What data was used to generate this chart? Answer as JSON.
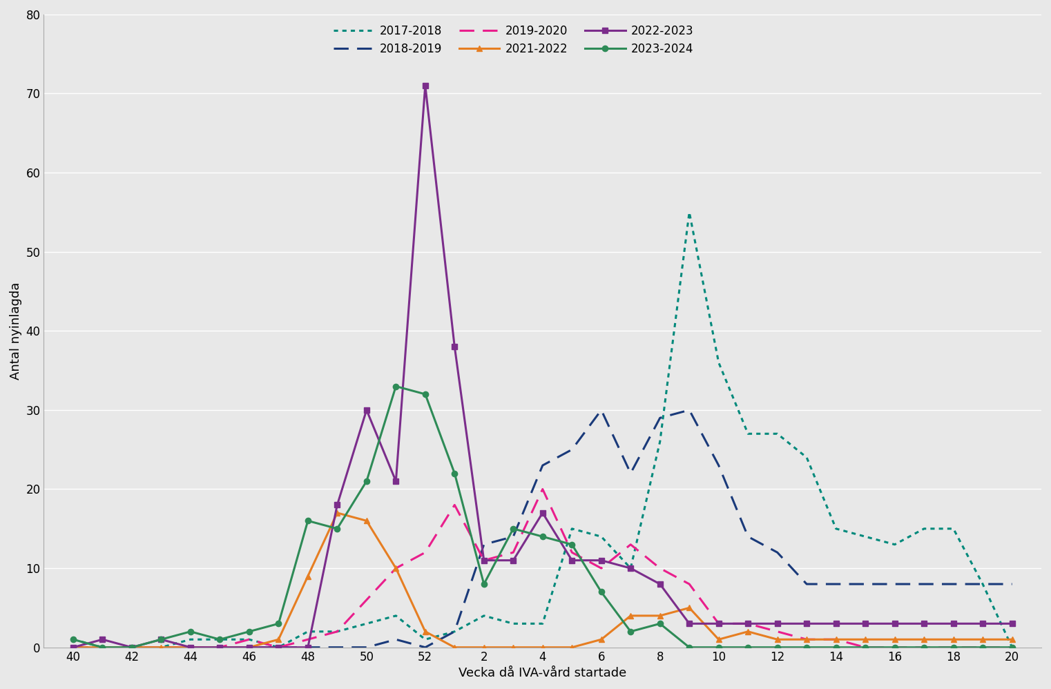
{
  "xlabel": "Vecka då IVA-vård startade",
  "ylabel": "Antal nyinlagda",
  "ylim": [
    0,
    80
  ],
  "yticks": [
    0,
    10,
    20,
    30,
    40,
    50,
    60,
    70,
    80
  ],
  "x_labels": [
    40,
    42,
    44,
    46,
    48,
    50,
    52,
    2,
    4,
    6,
    8,
    10,
    12,
    14,
    16,
    18,
    20
  ],
  "x_positions": [
    40,
    42,
    44,
    46,
    48,
    50,
    52,
    54,
    56,
    58,
    60,
    62,
    64,
    66,
    68,
    70,
    72
  ],
  "series": [
    {
      "label": "2017-2018",
      "color": "#00897b",
      "linestyle": "dotted",
      "linewidth": 2.2,
      "marker": null,
      "data_x": [
        40,
        41,
        42,
        43,
        44,
        45,
        46,
        47,
        48,
        49,
        50,
        51,
        52,
        53,
        54,
        55,
        56,
        57,
        58,
        59,
        60,
        61,
        62,
        63,
        64,
        65,
        66,
        67,
        68,
        69,
        70,
        71,
        72
      ],
      "data_y": [
        1,
        0,
        0,
        0,
        1,
        1,
        1,
        0,
        2,
        2,
        3,
        4,
        1,
        2,
        4,
        3,
        3,
        15,
        14,
        10,
        26,
        55,
        36,
        27,
        27,
        24,
        15,
        14,
        13,
        15,
        15,
        8,
        0
      ]
    },
    {
      "label": "2018-2019",
      "color": "#1a3a7a",
      "linestyle": "dashed",
      "linewidth": 2.2,
      "marker": null,
      "data_x": [
        40,
        41,
        42,
        43,
        44,
        45,
        46,
        47,
        48,
        49,
        50,
        51,
        52,
        53,
        54,
        55,
        56,
        57,
        58,
        59,
        60,
        61,
        62,
        63,
        64,
        65,
        66,
        67,
        68,
        69,
        70,
        71,
        72
      ],
      "data_y": [
        0,
        0,
        0,
        0,
        0,
        0,
        0,
        0,
        0,
        0,
        0,
        1,
        0,
        2,
        13,
        14,
        23,
        25,
        30,
        22,
        29,
        30,
        23,
        14,
        12,
        8,
        8,
        8,
        8,
        8,
        8,
        8,
        8
      ]
    },
    {
      "label": "2019-2020",
      "color": "#e91e8c",
      "linestyle": "dashed",
      "linewidth": 2.2,
      "marker": null,
      "data_x": [
        40,
        41,
        42,
        43,
        44,
        45,
        46,
        47,
        48,
        49,
        50,
        51,
        52,
        53,
        54,
        55,
        56,
        57,
        58,
        59,
        60,
        61,
        62,
        63,
        64,
        65,
        66,
        67,
        68,
        69,
        70,
        71,
        72
      ],
      "data_y": [
        0,
        0,
        0,
        0,
        0,
        0,
        1,
        0,
        1,
        2,
        6,
        10,
        12,
        18,
        11,
        12,
        20,
        12,
        10,
        13,
        10,
        8,
        3,
        3,
        2,
        1,
        1,
        0,
        0,
        0,
        0,
        0,
        0
      ]
    },
    {
      "label": "2021-2022",
      "color": "#e67e22",
      "linestyle": "solid",
      "linewidth": 2.2,
      "marker": "^",
      "markersize": 6,
      "data_x": [
        40,
        41,
        42,
        43,
        44,
        45,
        46,
        47,
        48,
        49,
        50,
        51,
        52,
        53,
        54,
        55,
        56,
        57,
        58,
        59,
        60,
        61,
        62,
        63,
        64,
        65,
        66,
        67,
        68,
        69,
        70,
        71,
        72
      ],
      "data_y": [
        0,
        0,
        0,
        0,
        0,
        0,
        0,
        1,
        9,
        17,
        16,
        10,
        2,
        0,
        0,
        0,
        0,
        0,
        1,
        4,
        4,
        5,
        1,
        2,
        1,
        1,
        1,
        1,
        1,
        1,
        1,
        1,
        1
      ]
    },
    {
      "label": "2022-2023",
      "color": "#7b2d8b",
      "linestyle": "solid",
      "linewidth": 2.2,
      "marker": "s",
      "markersize": 6,
      "data_x": [
        40,
        41,
        42,
        43,
        44,
        45,
        46,
        47,
        48,
        49,
        50,
        51,
        52,
        53,
        54,
        55,
        56,
        57,
        58,
        59,
        60,
        61,
        62,
        63,
        64,
        65,
        66,
        67,
        68,
        69,
        70,
        71,
        72
      ],
      "data_y": [
        0,
        1,
        0,
        1,
        0,
        0,
        0,
        0,
        0,
        18,
        30,
        21,
        71,
        38,
        11,
        11,
        17,
        11,
        11,
        10,
        8,
        3,
        3,
        3,
        3,
        3,
        3,
        3,
        3,
        3,
        3,
        3,
        3
      ]
    },
    {
      "label": "2023-2024",
      "color": "#2e8b57",
      "linestyle": "solid",
      "linewidth": 2.2,
      "marker": "o",
      "markersize": 6,
      "data_x": [
        40,
        41,
        42,
        43,
        44,
        45,
        46,
        47,
        48,
        49,
        50,
        51,
        52,
        53,
        54,
        55,
        56,
        57,
        58,
        59,
        60,
        61,
        62,
        63,
        64,
        65,
        66,
        67,
        68,
        69,
        70,
        71,
        72
      ],
      "data_y": [
        1,
        0,
        0,
        1,
        2,
        1,
        2,
        3,
        16,
        15,
        21,
        33,
        32,
        22,
        8,
        15,
        14,
        13,
        7,
        2,
        3,
        0,
        0,
        0,
        0,
        0,
        0,
        0,
        0,
        0,
        0,
        0,
        0
      ]
    }
  ],
  "background_color": "#e8e8e8",
  "grid_color": "#ffffff",
  "label_fontsize": 13,
  "tick_fontsize": 12,
  "legend_fontsize": 12
}
